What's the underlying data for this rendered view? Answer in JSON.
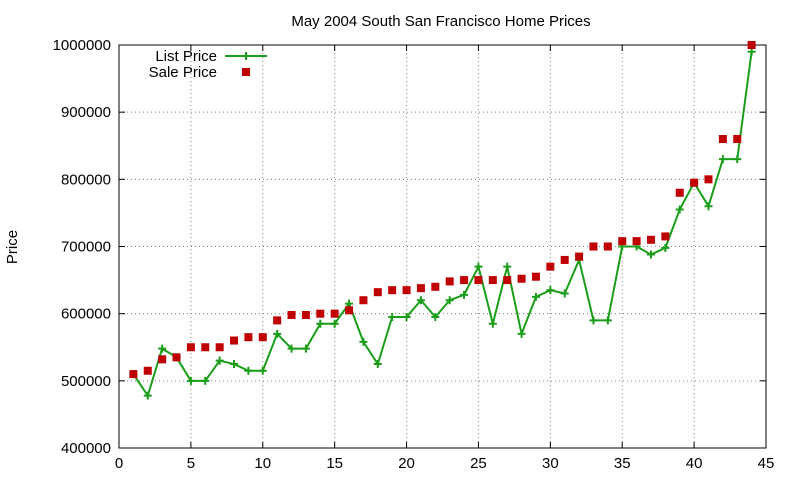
{
  "chart_data": {
    "type": "line",
    "title": "May 2004 South San Francisco Home Prices",
    "xlabel": "",
    "ylabel": "Price",
    "xlim": [
      0,
      45
    ],
    "ylim": [
      400000,
      1000000
    ],
    "x_ticks": [
      0,
      5,
      10,
      15,
      20,
      25,
      30,
      35,
      40,
      45
    ],
    "y_ticks": [
      400000,
      500000,
      600000,
      700000,
      800000,
      900000,
      1000000
    ],
    "grid": true,
    "legend_position": "top-left",
    "x": [
      1,
      2,
      3,
      4,
      5,
      6,
      7,
      8,
      9,
      10,
      11,
      12,
      13,
      14,
      15,
      16,
      17,
      18,
      19,
      20,
      21,
      22,
      23,
      24,
      25,
      26,
      27,
      28,
      29,
      30,
      31,
      32,
      33,
      34,
      35,
      36,
      37,
      38,
      39,
      40,
      41,
      42,
      43,
      44
    ],
    "series": [
      {
        "name": "List Price",
        "style": "line-with-plus",
        "color": "#1a9e1a",
        "values": [
          510000,
          478000,
          548000,
          535000,
          500000,
          500000,
          530000,
          525000,
          515000,
          515000,
          570000,
          548000,
          548000,
          585000,
          585000,
          615000,
          558000,
          525000,
          595000,
          595000,
          620000,
          595000,
          620000,
          628000,
          670000,
          585000,
          670000,
          570000,
          625000,
          635000,
          630000,
          680000,
          590000,
          590000,
          700000,
          700000,
          688000,
          698000,
          755000,
          795000,
          760000,
          830000,
          830000,
          990000
        ]
      },
      {
        "name": "Sale Price",
        "style": "square-markers",
        "color": "#c00000",
        "values": [
          510000,
          515000,
          532000,
          535000,
          550000,
          550000,
          550000,
          560000,
          565000,
          565000,
          590000,
          598000,
          598000,
          600000,
          600000,
          605000,
          620000,
          632000,
          635000,
          635000,
          638000,
          640000,
          648000,
          650000,
          650000,
          650000,
          650000,
          652000,
          655000,
          670000,
          680000,
          685000,
          700000,
          700000,
          708000,
          708000,
          710000,
          715000,
          780000,
          795000,
          800000,
          860000,
          860000,
          1000000
        ]
      }
    ]
  }
}
